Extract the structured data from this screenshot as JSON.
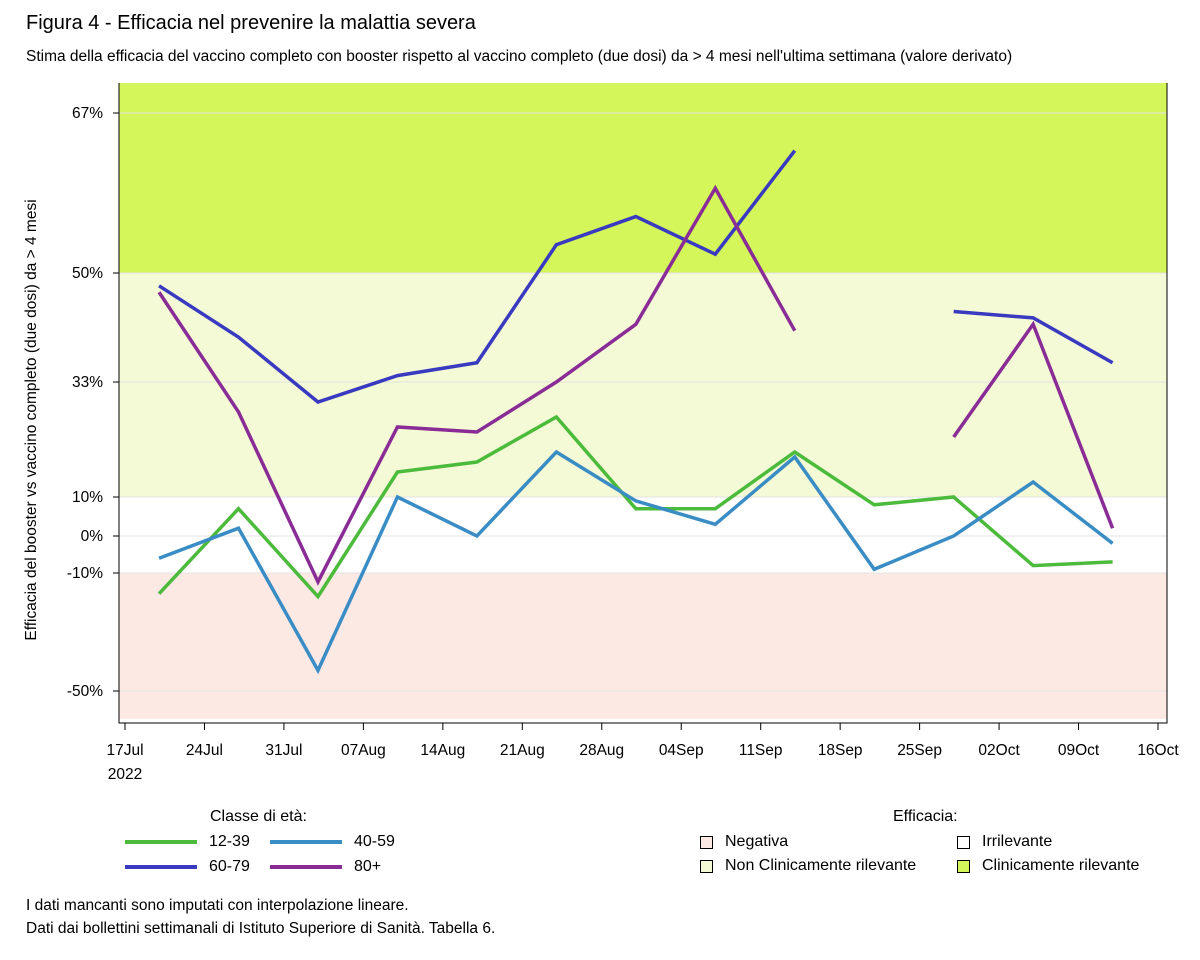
{
  "header": {
    "title": "Figura 4 - Efficacia nel prevenire la malattia severa",
    "subtitle": "Stima della efficacia del vaccino completo con booster rispetto al vaccino completo (due dosi) da > 4 mesi nell'ultima settimana (valore derivato)"
  },
  "chart_data": {
    "type": "line",
    "ylabel": "Efficacia del booster vs vaccino completo (due dosi) da > 4 mesi",
    "x_ticks": [
      {
        "date": "2022-07-17",
        "label": "17Jul",
        "label2": "2022"
      },
      {
        "date": "2022-07-24",
        "label": "24Jul"
      },
      {
        "date": "2022-07-31",
        "label": "31Jul"
      },
      {
        "date": "2022-08-07",
        "label": "07Aug"
      },
      {
        "date": "2022-08-14",
        "label": "14Aug"
      },
      {
        "date": "2022-08-21",
        "label": "21Aug"
      },
      {
        "date": "2022-08-28",
        "label": "28Aug"
      },
      {
        "date": "2022-09-04",
        "label": "04Sep"
      },
      {
        "date": "2022-09-11",
        "label": "11Sep"
      },
      {
        "date": "2022-09-18",
        "label": "18Sep"
      },
      {
        "date": "2022-09-25",
        "label": "25Sep"
      },
      {
        "date": "2022-10-02",
        "label": "02Oct"
      },
      {
        "date": "2022-10-09",
        "label": "09Oct"
      },
      {
        "date": "2022-10-16",
        "label": "16Oct"
      }
    ],
    "y_ticks": [
      {
        "value": 67,
        "label": "67%"
      },
      {
        "value": 50,
        "label": "50%"
      },
      {
        "value": 33,
        "label": "33%"
      },
      {
        "value": 10,
        "label": "10%"
      },
      {
        "value": 0,
        "label": "0%"
      },
      {
        "value": -10,
        "label": "-10%"
      },
      {
        "value": -50,
        "label": "-50%"
      }
    ],
    "y_range_label_scale": [
      -60,
      70
    ],
    "bands": [
      {
        "name": "Negativa",
        "from": -60,
        "to": -10,
        "color": "#fde9e4"
      },
      {
        "name": "Irrilevante",
        "from": -10,
        "to": 10,
        "color": "#ffffff"
      },
      {
        "name": "Non Clinicamente rilevante",
        "from": 10,
        "to": 50,
        "color": "#f4fad6"
      },
      {
        "name": "Clinicamente rilevante",
        "from": 50,
        "to": 70,
        "color": "#d4f65a"
      }
    ],
    "x": [
      "2022-07-20",
      "2022-07-27",
      "2022-08-03",
      "2022-08-10",
      "2022-08-17",
      "2022-08-24",
      "2022-08-31",
      "2022-09-07",
      "2022-09-14",
      "2022-09-21",
      "2022-09-28",
      "2022-10-05",
      "2022-10-12"
    ],
    "series": [
      {
        "name": "12-39",
        "color": "#4cbb3c",
        "values": [
          -17,
          7,
          -18,
          15,
          17,
          26,
          7,
          7,
          19,
          8,
          10,
          -8,
          -7
        ]
      },
      {
        "name": "40-59",
        "color": "#3a8dc4",
        "values": [
          -6,
          2,
          -43,
          10,
          0,
          19,
          9,
          3,
          18,
          -9,
          0,
          13,
          -2
        ]
      },
      {
        "name": "60-79",
        "color": "#3a3ac0",
        "values": [
          48,
          40,
          29,
          34,
          36,
          53,
          56,
          52,
          63,
          null,
          44,
          43,
          36
        ]
      },
      {
        "name": "80+",
        "color": "#8a2c95",
        "values": [
          47,
          27,
          -13,
          24,
          23,
          33,
          42,
          59,
          41,
          null,
          22,
          42,
          2
        ]
      }
    ],
    "legend_title": "Classe di età:",
    "bands_legend_title": "Efficacia:"
  },
  "notes": [
    "I dati mancanti sono imputati con interpolazione lineare.",
    "Dati dai bollettini settimanali di Istituto Superiore di Sanità. Tabella 6."
  ]
}
